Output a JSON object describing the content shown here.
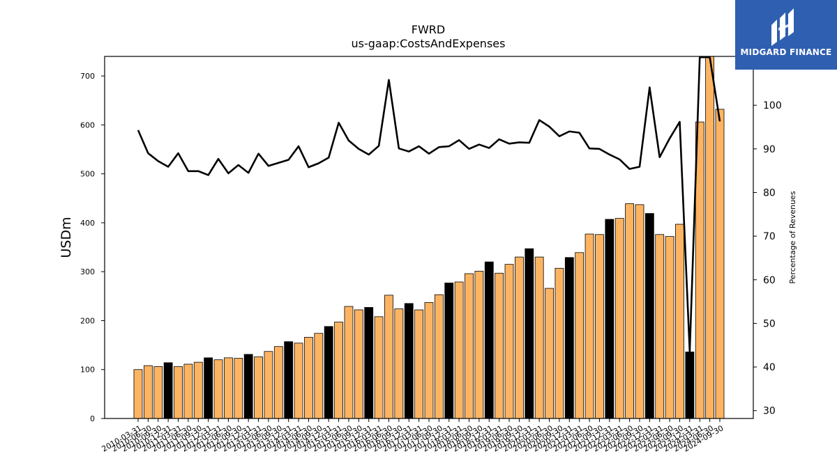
{
  "chart_data": {
    "type": "bar",
    "title": "FWRD",
    "subtitle": "us-gaap:CostsAndExpenses",
    "ylabel": "USDm",
    "y2label": "Percentage of Revenues",
    "ylim": [
      0,
      740
    ],
    "y2lim": [
      28.2,
      111.2
    ],
    "yticks": [
      0,
      100,
      200,
      300,
      400,
      500,
      600,
      700
    ],
    "y2ticks": [
      30,
      40,
      50,
      60,
      70,
      80,
      90,
      100
    ],
    "grid": false,
    "bar_color": "#fdb462",
    "highlight_color": "#000000",
    "line_color": "#000000",
    "categories": [
      "2010-03-31",
      "2010-06-30",
      "2010-09-30",
      "2010-12-31",
      "2011-03-31",
      "2011-06-30",
      "2011-09-30",
      "2011-12-31",
      "2012-03-31",
      "2012-06-30",
      "2012-09-30",
      "2012-12-31",
      "2013-03-31",
      "2013-06-30",
      "2013-09-30",
      "2013-12-31",
      "2014-03-31",
      "2014-06-30",
      "2014-09-30",
      "2014-12-31",
      "2015-03-31",
      "2015-06-30",
      "2015-09-30",
      "2015-12-31",
      "2016-03-31",
      "2016-06-30",
      "2016-09-30",
      "2016-12-31",
      "2017-03-31",
      "2017-06-30",
      "2017-09-30",
      "2017-12-31",
      "2018-03-31",
      "2018-06-30",
      "2018-09-30",
      "2018-12-31",
      "2019-03-31",
      "2019-06-30",
      "2019-09-30",
      "2019-12-31",
      "2020-03-31",
      "2020-06-30",
      "2020-09-30",
      "2020-12-31",
      "2021-03-31",
      "2021-06-30",
      "2021-09-30",
      "2021-12-31",
      "2022-03-31",
      "2022-06-30",
      "2022-09-30",
      "2022-12-31",
      "2023-03-31",
      "2023-06-30",
      "2023-09-30",
      "2023-12-31",
      "2024-03-31",
      "2024-06-30",
      "2024-09-30"
    ],
    "series": [
      {
        "type": "bar",
        "values": [
          100,
          108,
          106,
          114,
          106,
          111,
          115,
          124,
          120,
          124,
          123,
          131,
          126,
          137,
          147,
          157,
          154,
          166,
          174,
          188,
          197,
          229,
          222,
          227,
          208,
          252,
          224,
          235,
          222,
          237,
          253,
          277,
          279,
          296,
          301,
          320,
          297,
          315,
          330,
          347,
          330,
          266,
          307,
          329,
          339,
          377,
          376,
          407,
          409,
          439,
          437,
          419,
          376,
          372,
          397,
          136,
          606,
          770,
          632
        ],
        "highlight": [
          false,
          false,
          false,
          true,
          false,
          false,
          false,
          true,
          false,
          false,
          false,
          true,
          false,
          false,
          false,
          true,
          false,
          false,
          false,
          true,
          false,
          false,
          false,
          true,
          false,
          false,
          false,
          true,
          false,
          false,
          false,
          true,
          false,
          false,
          false,
          true,
          false,
          false,
          false,
          true,
          false,
          false,
          false,
          true,
          false,
          false,
          false,
          true,
          false,
          false,
          false,
          true,
          false,
          false,
          false,
          true,
          false,
          false,
          false
        ]
      },
      {
        "type": "line",
        "axis": "right",
        "values": [
          94.3,
          89.0,
          87.2,
          85.9,
          89.0,
          84.9,
          84.9,
          84.0,
          87.7,
          84.4,
          86.3,
          84.5,
          88.9,
          86.1,
          86.8,
          87.5,
          90.6,
          85.8,
          86.7,
          88.0,
          96.0,
          91.9,
          90.0,
          88.7,
          90.7,
          105.8,
          90.1,
          89.4,
          90.6,
          88.9,
          90.4,
          90.6,
          92.0,
          90.0,
          91.0,
          90.2,
          92.2,
          91.2,
          91.5,
          91.4,
          96.6,
          95.1,
          92.9,
          94.0,
          93.7,
          90.1,
          90.0,
          88.7,
          87.6,
          85.4,
          85.9,
          104.1,
          88.1,
          92.4,
          96.2,
          43.5,
          111.0,
          111.0,
          96.3
        ]
      }
    ]
  },
  "logo": {
    "text": "MIDGARD FINANCE",
    "bg_color": "#2f5fb0"
  }
}
